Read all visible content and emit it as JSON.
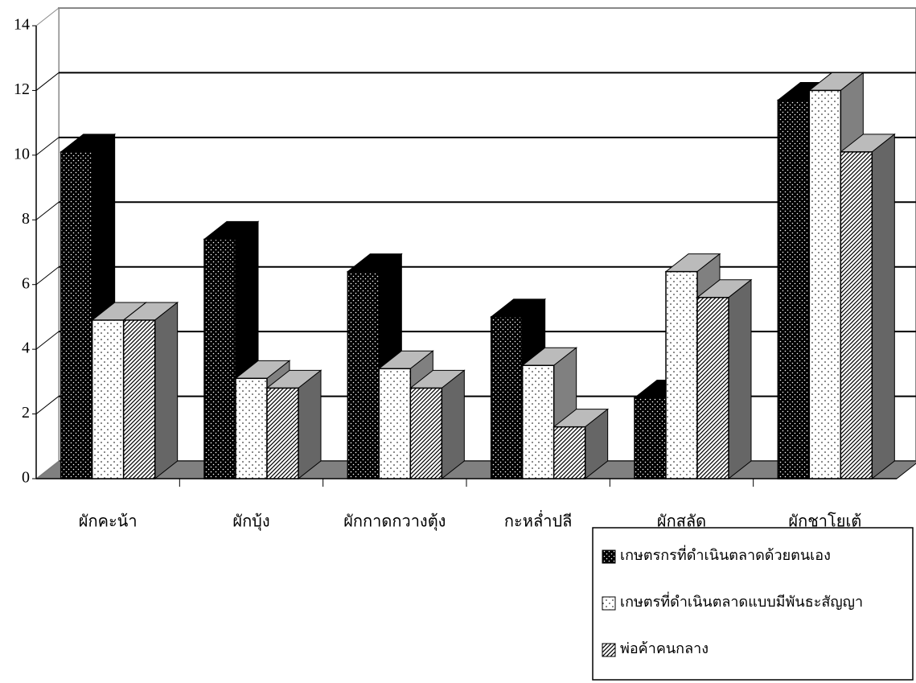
{
  "chart_data": {
    "type": "bar3d",
    "categories": [
      "ผักคะน้า",
      "ผักบุ้ง",
      "ผักกาดกวางตุ้ง",
      "กะหล่ำปลี",
      "ผักสลัด",
      "ผักชาโยเต้"
    ],
    "series": [
      {
        "name": "เกษตรกรที่ดำเนินตลาดด้วยตนเอง",
        "color": "#000000",
        "values": [
          10.1,
          7.4,
          6.4,
          5.0,
          2.5,
          11.7
        ]
      },
      {
        "name": "เกษตรที่ดำเนินตลาดแบบมีพันธะสัญญา",
        "color": "#ffffff",
        "values": [
          4.9,
          3.1,
          3.4,
          3.5,
          6.4,
          12.0
        ]
      },
      {
        "name": "พ่อค้าคนกลาง",
        "color": "#bbbbbb",
        "values": [
          4.9,
          2.8,
          2.8,
          1.6,
          5.6,
          10.1
        ]
      }
    ],
    "ylim": [
      0,
      14
    ],
    "yticks": [
      0,
      2,
      4,
      6,
      8,
      10,
      12,
      14
    ],
    "grid": true,
    "legend": "bottom-right"
  }
}
